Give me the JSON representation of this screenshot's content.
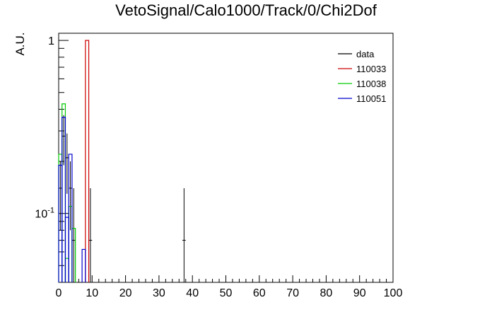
{
  "chart_data": {
    "type": "histogram",
    "title": "VetoSignal/Calo1000/Track/0/Chi2Dof",
    "ylabel": "A.U.",
    "xlabel": "",
    "xlim": [
      0,
      100
    ],
    "ylim": [
      0.04,
      1.1
    ],
    "yscale": "log",
    "grid": false,
    "legend_position": "top-right",
    "x_ticks": [
      "0",
      "10",
      "20",
      "30",
      "40",
      "50",
      "60",
      "70",
      "80",
      "90",
      "100"
    ],
    "y_ticks": [
      {
        "value": 1,
        "label": "1"
      },
      {
        "value": 0.1,
        "label": "10^-1"
      }
    ],
    "bin_width": 1,
    "series": [
      {
        "name": "data",
        "color": "#000000",
        "style": "points",
        "points": [
          {
            "x": 0.5,
            "y": 0.14,
            "err": 0.06
          },
          {
            "x": 1.5,
            "y": 0.28,
            "err": 0.09
          },
          {
            "x": 2.5,
            "y": 0.21,
            "err": 0.08
          },
          {
            "x": 3.5,
            "y": 0.14,
            "err": 0.06
          },
          {
            "x": 4.5,
            "y": 0.07,
            "err": 0.07
          },
          {
            "x": 9.5,
            "y": 0.07,
            "err": 0.07
          },
          {
            "x": 37.5,
            "y": 0.07,
            "err": 0.07
          }
        ]
      },
      {
        "name": "110033",
        "color": "#cc0000",
        "style": "step",
        "bins": [
          {
            "x0": 8,
            "x1": 9,
            "y": 1.0
          }
        ]
      },
      {
        "name": "110038",
        "color": "#00cc00",
        "style": "step",
        "bins": [
          {
            "x0": 0,
            "x1": 1,
            "y": 0.22
          },
          {
            "x0": 1,
            "x1": 2,
            "y": 0.43
          },
          {
            "x0": 2,
            "x1": 3,
            "y": 0.055
          },
          {
            "x0": 3,
            "x1": 4,
            "y": 0.11
          },
          {
            "x0": 4,
            "x1": 5,
            "y": 0.082
          }
        ]
      },
      {
        "name": "110051",
        "color": "#0000cc",
        "style": "step",
        "bins": [
          {
            "x0": 0,
            "x1": 1,
            "y": 0.19
          },
          {
            "x0": 1,
            "x1": 2,
            "y": 0.36
          },
          {
            "x0": 2,
            "x1": 3,
            "y": 0.095
          },
          {
            "x0": 3,
            "x1": 4,
            "y": 0.22
          },
          {
            "x0": 7,
            "x1": 8,
            "y": 0.062
          }
        ]
      }
    ]
  }
}
